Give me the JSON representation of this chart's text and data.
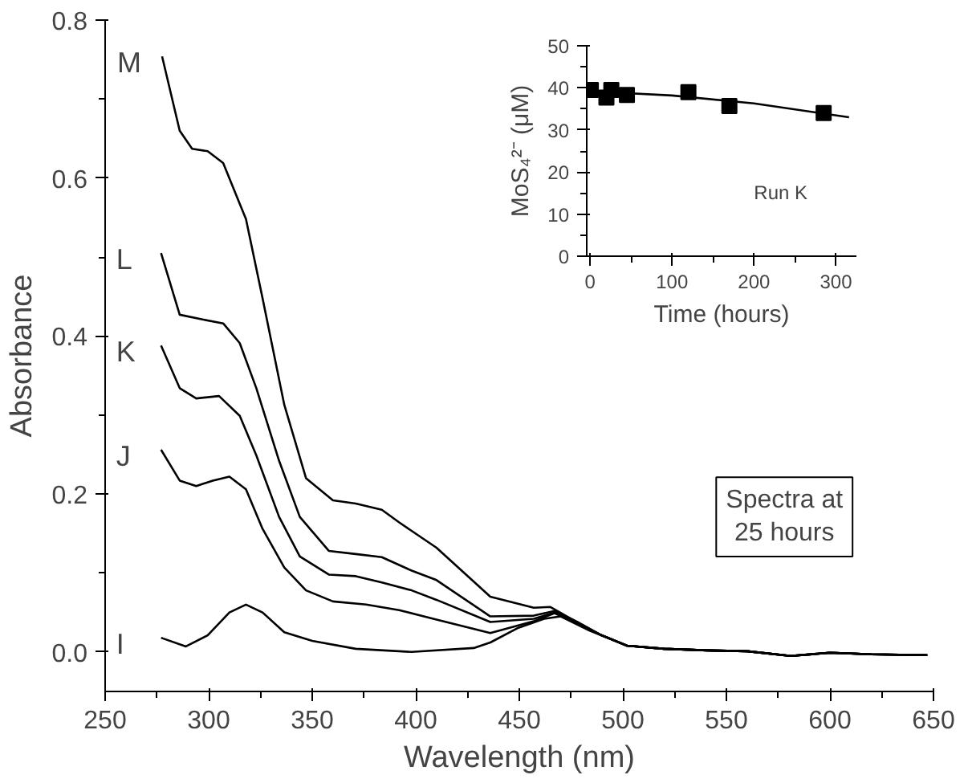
{
  "chart_data": [
    {
      "type": "line",
      "xlabel": "Wavelength (nm)",
      "ylabel": "Absorbance",
      "xlim": [
        250,
        650
      ],
      "ylim": [
        -0.05,
        0.8
      ],
      "xticks": [
        250,
        300,
        350,
        400,
        450,
        500,
        550,
        600,
        650
      ],
      "yticks": [
        {
          "value": 0,
          "label": "0.0"
        },
        0.2,
        0.4,
        0.6,
        0.8
      ],
      "grid": false,
      "line_style": "solid",
      "annotations": [
        "Spectra at\n25 hours"
      ],
      "series": [
        {
          "name": "M",
          "color": "#000000",
          "x": [
            277.5,
            286,
            292,
            299.5,
            307,
            318,
            326,
            336.5,
            347,
            360,
            371,
            383.6,
            392,
            410,
            436,
            457,
            465,
            473,
            489,
            502,
            520,
            541,
            560,
            581,
            600,
            620,
            647
          ],
          "values": [
            0.754,
            0.66,
            0.637,
            0.634,
            0.619,
            0.548,
            0.448,
            0.313,
            0.22,
            0.192,
            0.188,
            0.18,
            0.164,
            0.132,
            0.07,
            0.056,
            0.057,
            0.045,
            0.022,
            0.008,
            0.004,
            0.002,
            0.001,
            -0.005,
            -0.001,
            -0.003,
            -0.004
          ]
        },
        {
          "name": "L",
          "color": "#000000",
          "x": [
            277,
            286,
            297,
            307,
            315,
            323,
            334,
            344,
            358,
            371,
            383.6,
            398,
            410,
            436,
            457,
            467,
            478,
            489,
            502,
            520,
            541,
            560,
            581,
            600,
            620,
            647
          ],
          "values": [
            0.505,
            0.427,
            0.421,
            0.416,
            0.391,
            0.334,
            0.242,
            0.171,
            0.128,
            0.124,
            0.12,
            0.103,
            0.091,
            0.045,
            0.046,
            0.052,
            0.038,
            0.022,
            0.008,
            0.004,
            0.002,
            0.001,
            -0.005,
            -0.001,
            -0.003,
            -0.004
          ]
        },
        {
          "name": "K",
          "color": "#000000",
          "x": [
            277,
            286,
            294,
            305,
            315,
            323,
            334,
            344,
            358,
            371,
            383.6,
            398,
            410,
            436,
            457,
            467,
            478,
            489,
            502,
            520,
            541,
            560,
            581,
            600,
            620,
            647
          ],
          "values": [
            0.388,
            0.334,
            0.321,
            0.324,
            0.299,
            0.249,
            0.171,
            0.121,
            0.098,
            0.096,
            0.088,
            0.078,
            0.066,
            0.038,
            0.042,
            0.05,
            0.037,
            0.022,
            0.008,
            0.004,
            0.002,
            0.001,
            -0.005,
            -0.001,
            -0.003,
            -0.004
          ]
        },
        {
          "name": "J",
          "color": "#000000",
          "x": [
            277,
            286,
            294,
            302,
            310,
            318,
            326,
            336.5,
            347,
            360,
            376,
            392,
            410,
            436,
            457,
            467,
            478,
            489,
            502,
            520,
            541,
            560,
            581,
            600,
            620,
            647
          ],
          "values": [
            0.256,
            0.217,
            0.21,
            0.217,
            0.222,
            0.206,
            0.156,
            0.107,
            0.078,
            0.064,
            0.06,
            0.053,
            0.041,
            0.024,
            0.039,
            0.049,
            0.036,
            0.022,
            0.008,
            0.004,
            0.002,
            0.001,
            -0.005,
            -0.001,
            -0.003,
            -0.004
          ]
        },
        {
          "name": "I",
          "color": "#000000",
          "x": [
            277,
            289,
            299.5,
            310,
            318,
            326,
            336.5,
            350,
            371,
            398,
            428,
            436,
            449,
            462,
            470,
            484,
            502,
            520,
            541,
            560,
            581,
            600,
            620,
            647
          ],
          "values": [
            0.018,
            0.007,
            0.021,
            0.05,
            0.06,
            0.05,
            0.025,
            0.014,
            0.004,
            0.0,
            0.005,
            0.012,
            0.03,
            0.042,
            0.045,
            0.027,
            0.008,
            0.004,
            0.002,
            0.001,
            -0.005,
            -0.001,
            -0.003,
            -0.004
          ]
        }
      ]
    },
    {
      "type": "scatter",
      "xlabel": "Time (hours)",
      "ylabel": "MoS₄²⁻ (μM)",
      "xlim": [
        -4,
        325
      ],
      "ylim": [
        0,
        50
      ],
      "xticks": [
        0,
        100,
        200,
        300
      ],
      "yticks": [
        0,
        10,
        20,
        30,
        40,
        50
      ],
      "grid": false,
      "annotations": [
        "Run K"
      ],
      "series": [
        {
          "type": "scatter",
          "marker": "square",
          "color": "#000000",
          "x": [
            1,
            20,
            26,
            45,
            120,
            170,
            285
          ],
          "values": [
            39.5,
            37.7,
            39.5,
            38.3,
            39,
            35.7,
            34
          ]
        },
        {
          "type": "line",
          "color": "#000000",
          "x": [
            0,
            100,
            200,
            316
          ],
          "values": [
            39.2,
            38.2,
            36.3,
            33
          ]
        }
      ]
    }
  ]
}
